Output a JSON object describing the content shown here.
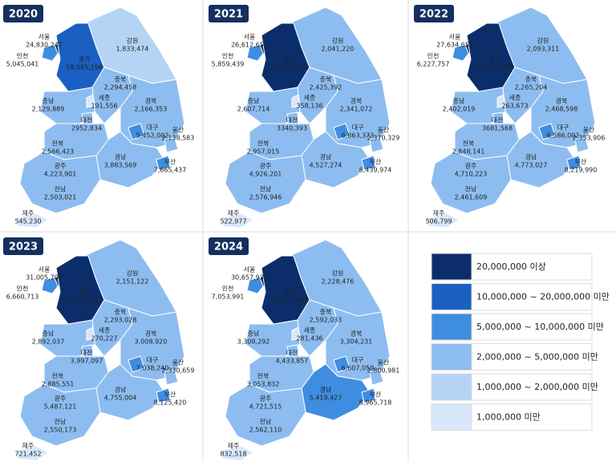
{
  "maps": [
    {
      "year": "2020",
      "regions": [
        {
          "name": "서울",
          "value": "24,830,247",
          "color": "#0b2e6b"
        },
        {
          "name": "인천",
          "value": "5,045,041",
          "color": "#3f8de0"
        },
        {
          "name": "경기",
          "value": "19,085,198",
          "color": "#1a5fc2"
        },
        {
          "name": "강원",
          "value": "1,833,474",
          "color": "#b5d4f5"
        },
        {
          "name": "충북",
          "value": "2,294,458",
          "color": "#8dbdf0"
        },
        {
          "name": "충남",
          "value": "2,129,889",
          "color": "#8dbdf0"
        },
        {
          "name": "세종",
          "value": "191,556",
          "color": "#d8e8fa"
        },
        {
          "name": "대전",
          "value": "2952,834",
          "color": "#8dbdf0"
        },
        {
          "name": "경북",
          "value": "2,166,353",
          "color": "#8dbdf0"
        },
        {
          "name": "대구",
          "value": "5,452,002",
          "color": "#3f8de0"
        },
        {
          "name": "전북",
          "value": "2,566,423",
          "color": "#8dbdf0"
        },
        {
          "name": "경남",
          "value": "3,883,569",
          "color": "#8dbdf0"
        },
        {
          "name": "울산",
          "value": "2,138,583",
          "color": "#8dbdf0"
        },
        {
          "name": "부산",
          "value": "7,665,437",
          "color": "#3f8de0"
        },
        {
          "name": "광주",
          "value": "4,223,901",
          "color": "#8dbdf0"
        },
        {
          "name": "전남",
          "value": "2,503,021",
          "color": "#8dbdf0"
        },
        {
          "name": "제주",
          "value": "545,230",
          "color": "#d8e8fa"
        }
      ]
    },
    {
      "year": "2021",
      "regions": [
        {
          "name": "서울",
          "value": "26,612,657",
          "color": "#0b2e6b"
        },
        {
          "name": "인천",
          "value": "5,859,439",
          "color": "#3f8de0"
        },
        {
          "name": "경기",
          "value": "22,037,427",
          "color": "#0b2e6b"
        },
        {
          "name": "강원",
          "value": "2,041,220",
          "color": "#8dbdf0"
        },
        {
          "name": "충북",
          "value": "2,425,392",
          "color": "#8dbdf0"
        },
        {
          "name": "충남",
          "value": "2,607,714",
          "color": "#8dbdf0"
        },
        {
          "name": "세종",
          "value": "358,136",
          "color": "#d8e8fa"
        },
        {
          "name": "대전",
          "value": "3340,393",
          "color": "#8dbdf0"
        },
        {
          "name": "경북",
          "value": "2,341,072",
          "color": "#8dbdf0"
        },
        {
          "name": "대구",
          "value": "6,863,373",
          "color": "#3f8de0"
        },
        {
          "name": "전북",
          "value": "2,957,015",
          "color": "#8dbdf0"
        },
        {
          "name": "경남",
          "value": "4,527,274",
          "color": "#8dbdf0"
        },
        {
          "name": "울산",
          "value": "2,370,329",
          "color": "#8dbdf0"
        },
        {
          "name": "부산",
          "value": "8,439,974",
          "color": "#3f8de0"
        },
        {
          "name": "광주",
          "value": "4,926,201",
          "color": "#8dbdf0"
        },
        {
          "name": "전남",
          "value": "2,576,946",
          "color": "#8dbdf0"
        },
        {
          "name": "제주",
          "value": "522,977",
          "color": "#d8e8fa"
        }
      ]
    },
    {
      "year": "2022",
      "regions": [
        {
          "name": "서울",
          "value": "27,634,652",
          "color": "#0b2e6b"
        },
        {
          "name": "인천",
          "value": "6,227,757",
          "color": "#3f8de0"
        },
        {
          "name": "경기",
          "value": "23,307,257",
          "color": "#0b2e6b"
        },
        {
          "name": "강원",
          "value": "2,093,311",
          "color": "#8dbdf0"
        },
        {
          "name": "충북",
          "value": "2,265,204",
          "color": "#8dbdf0"
        },
        {
          "name": "충남",
          "value": "2,402,019",
          "color": "#8dbdf0"
        },
        {
          "name": "세종",
          "value": "263,673",
          "color": "#d8e8fa"
        },
        {
          "name": "대전",
          "value": "3681,568",
          "color": "#8dbdf0"
        },
        {
          "name": "경북",
          "value": "2,468,598",
          "color": "#8dbdf0"
        },
        {
          "name": "대구",
          "value": "6,586,002",
          "color": "#3f8de0"
        },
        {
          "name": "전북",
          "value": "2,848,141",
          "color": "#8dbdf0"
        },
        {
          "name": "경남",
          "value": "4,773,027",
          "color": "#8dbdf0"
        },
        {
          "name": "울산",
          "value": "2,353,906",
          "color": "#8dbdf0"
        },
        {
          "name": "부산",
          "value": "8,219,990",
          "color": "#3f8de0"
        },
        {
          "name": "광주",
          "value": "4,710,223",
          "color": "#8dbdf0"
        },
        {
          "name": "전남",
          "value": "2,461,609",
          "color": "#8dbdf0"
        },
        {
          "name": "제주",
          "value": "506,799",
          "color": "#d8e8fa"
        }
      ]
    },
    {
      "year": "2023",
      "regions": [
        {
          "name": "서울",
          "value": "31,005,708",
          "color": "#0b2e6b"
        },
        {
          "name": "인천",
          "value": "6,660,713",
          "color": "#3f8de0"
        },
        {
          "name": "경기",
          "value": "25,621,822",
          "color": "#0b2e6b"
        },
        {
          "name": "강원",
          "value": "2,151,122",
          "color": "#8dbdf0"
        },
        {
          "name": "충북",
          "value": "2,293,028",
          "color": "#8dbdf0"
        },
        {
          "name": "충남",
          "value": "2,892,037",
          "color": "#8dbdf0"
        },
        {
          "name": "세종",
          "value": "270,227",
          "color": "#d8e8fa"
        },
        {
          "name": "대전",
          "value": "3,997,097",
          "color": "#8dbdf0"
        },
        {
          "name": "경북",
          "value": "3,008,920",
          "color": "#8dbdf0"
        },
        {
          "name": "대구",
          "value": "7,038,240",
          "color": "#3f8de0"
        },
        {
          "name": "전북",
          "value": "2,885,551",
          "color": "#8dbdf0"
        },
        {
          "name": "경남",
          "value": "4,755,004",
          "color": "#8dbdf0"
        },
        {
          "name": "울산",
          "value": "2,330,659",
          "color": "#8dbdf0"
        },
        {
          "name": "부산",
          "value": "8,125,420",
          "color": "#3f8de0"
        },
        {
          "name": "광주",
          "value": "5,487,121",
          "color": "#3f8de0"
        },
        {
          "name": "전남",
          "value": "2,550,173",
          "color": "#8dbdf0"
        },
        {
          "name": "제주",
          "value": "721,452",
          "color": "#d8e8fa"
        }
      ]
    },
    {
      "year": "2024",
      "regions": [
        {
          "name": "서울",
          "value": "30,657,937",
          "color": "#0b2e6b"
        },
        {
          "name": "인천",
          "value": "7,053,991",
          "color": "#3f8de0"
        },
        {
          "name": "경기",
          "value": "28,152,984",
          "color": "#0b2e6b"
        },
        {
          "name": "강원",
          "value": "2,228,476",
          "color": "#8dbdf0"
        },
        {
          "name": "충북",
          "value": "2,592,033",
          "color": "#8dbdf0"
        },
        {
          "name": "충남",
          "value": "3,308,292",
          "color": "#8dbdf0"
        },
        {
          "name": "세종",
          "value": "281,436",
          "color": "#d8e8fa"
        },
        {
          "name": "대전",
          "value": "4,433,857",
          "color": "#8dbdf0"
        },
        {
          "name": "경북",
          "value": "3,304,231",
          "color": "#8dbdf0"
        },
        {
          "name": "대구",
          "value": "6,607,059",
          "color": "#3f8de0"
        },
        {
          "name": "전북",
          "value": "3,053,832",
          "color": "#8dbdf0"
        },
        {
          "name": "경남",
          "value": "5,419,427",
          "color": "#3f8de0"
        },
        {
          "name": "울산",
          "value": "2,800,981",
          "color": "#8dbdf0"
        },
        {
          "name": "부산",
          "value": "8,965,718",
          "color": "#3f8de0"
        },
        {
          "name": "광주",
          "value": "4,721,515",
          "color": "#8dbdf0"
        },
        {
          "name": "전남",
          "value": "2,562,110",
          "color": "#8dbdf0"
        },
        {
          "name": "제주",
          "value": "832,518",
          "color": "#d8e8fa"
        }
      ]
    }
  ],
  "legend": [
    {
      "label": "20,000,000 이상",
      "color": "#0b2e6b"
    },
    {
      "label": "10,000,000 ~ 20,000,000 미만",
      "color": "#1a5fc2"
    },
    {
      "label": "5,000,000 ~ 10,000,000 미만",
      "color": "#3f8de0"
    },
    {
      "label": "2,000,000 ~ 5,000,000 미만",
      "color": "#8dbdf0"
    },
    {
      "label": "1,000,000 ~ 2,000,000 미만",
      "color": "#b5d4f5"
    },
    {
      "label": "1,000,000 미만",
      "color": "#d8e8fa"
    }
  ]
}
